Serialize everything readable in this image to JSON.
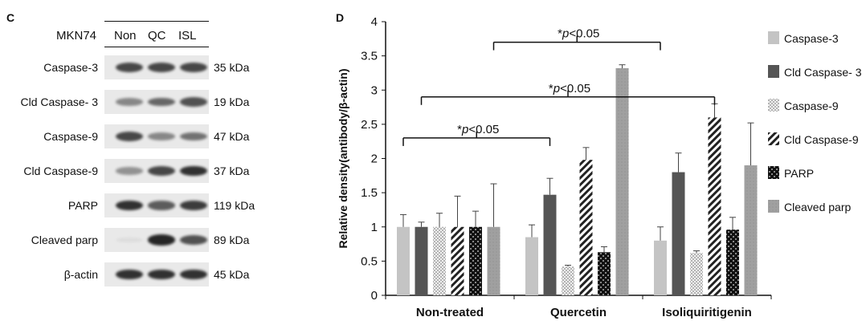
{
  "panel_c": {
    "letter": "C",
    "cell_line": "MKN74",
    "columns": [
      "Non",
      "QC",
      "ISL"
    ],
    "rows": [
      {
        "label": "Caspase-3",
        "kda": "35 kDa",
        "bands": [
          0.75,
          0.75,
          0.75
        ]
      },
      {
        "label": "Cld Caspase- 3",
        "kda": "19 kDa",
        "bands": [
          0.45,
          0.6,
          0.7
        ]
      },
      {
        "label": "Caspase-9",
        "kda": "47 kDa",
        "bands": [
          0.75,
          0.45,
          0.55
        ]
      },
      {
        "label": "Cld Caspase-9",
        "kda": "37 kDa",
        "bands": [
          0.4,
          0.75,
          0.85
        ]
      },
      {
        "label": "PARP",
        "kda": "119 kDa",
        "bands": [
          0.85,
          0.65,
          0.8
        ]
      },
      {
        "label": "Cleaved parp",
        "kda": "89 kDa",
        "bands": [
          0.05,
          0.9,
          0.7
        ]
      },
      {
        "label": "β-actin",
        "kda": "45 kDa",
        "bands": [
          0.85,
          0.85,
          0.85
        ]
      }
    ]
  },
  "panel_d": {
    "letter": "D",
    "colors": {
      "Caspase-3": "#c4c4c4",
      "Cld Caspase- 3": "#555555",
      "Caspase-9": "#d8d8d8",
      "Cld Caspase-9": "#333333",
      "PARP": "#111111",
      "Cleaved parp": "#9a9a9a"
    },
    "significance": [
      {
        "label_prefix": "*",
        "label_p": "p",
        "label_rest": "<0.05",
        "from": 0,
        "to": 1,
        "level": "low"
      },
      {
        "label_prefix": "*",
        "label_p": "p",
        "label_rest": "<0.05",
        "from": 0,
        "to": 2,
        "level": "mid"
      },
      {
        "label_prefix": "*",
        "label_p": "p",
        "label_rest": "<0.05",
        "from": 0,
        "to": 2,
        "level": "high"
      }
    ]
  },
  "chart_data": {
    "type": "bar",
    "title": "",
    "xlabel": "",
    "ylabel": "Relative density(antibody/β-actin)",
    "ylim": [
      0,
      4
    ],
    "yticks": [
      "0",
      "0.5",
      "1",
      "1.5",
      "2",
      "2.5",
      "3",
      "3.5",
      "4"
    ],
    "categories": [
      "Non-treated",
      "Quercetin",
      "Isoliquiritigenin"
    ],
    "legend_position": "right",
    "grid": false,
    "series": [
      {
        "name": "Caspase-3",
        "values": [
          1.0,
          0.85,
          0.8
        ],
        "errors": [
          0.18,
          0.18,
          0.2
        ]
      },
      {
        "name": "Cld Caspase- 3",
        "values": [
          1.0,
          1.47,
          1.8
        ],
        "errors": [
          0.07,
          0.24,
          0.28
        ]
      },
      {
        "name": "Caspase-9",
        "values": [
          1.0,
          0.42,
          0.62
        ],
        "errors": [
          0.2,
          0.02,
          0.03
        ]
      },
      {
        "name": "Cld Caspase-9",
        "values": [
          1.0,
          1.98,
          2.6
        ],
        "errors": [
          0.45,
          0.18,
          0.2
        ]
      },
      {
        "name": "PARP",
        "values": [
          1.0,
          0.63,
          0.96
        ],
        "errors": [
          0.23,
          0.08,
          0.18
        ]
      },
      {
        "name": "Cleaved parp",
        "values": [
          1.0,
          3.32,
          1.9
        ],
        "errors": [
          0.63,
          0.05,
          0.62
        ]
      }
    ]
  }
}
